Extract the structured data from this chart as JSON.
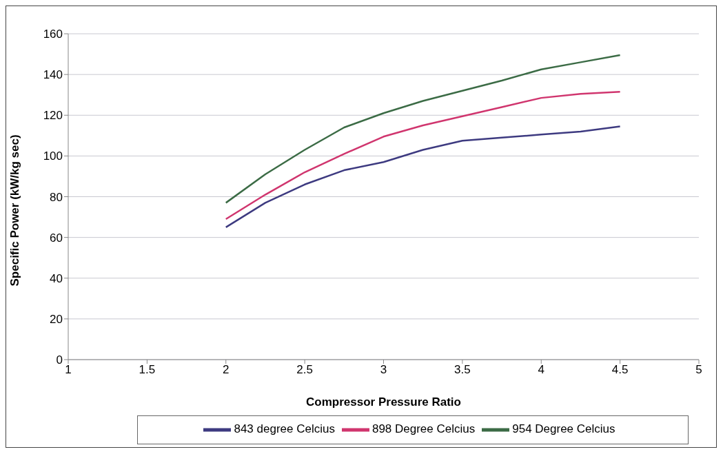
{
  "chart_data": {
    "type": "line",
    "xlabel": "Compressor Pressure Ratio",
    "ylabel": "Specific Power (kW/kg sec)",
    "x": [
      2,
      2.25,
      2.5,
      2.75,
      3,
      3.25,
      3.5,
      3.75,
      4,
      4.25,
      4.5
    ],
    "series": [
      {
        "name": "843 degree Celcius",
        "color": "#3d3a80",
        "values": [
          65,
          77,
          86,
          93,
          97,
          103,
          107.5,
          109,
          110.5,
          112,
          114.5
        ]
      },
      {
        "name": "898 Degree Celcius",
        "color": "#d0356e",
        "values": [
          69,
          81,
          92,
          101,
          109.5,
          115,
          119.5,
          124,
          128.5,
          130.5,
          131.5
        ]
      },
      {
        "name": "954 Degree Celcius",
        "color": "#3b6b45",
        "values": [
          77,
          91,
          103,
          114,
          121,
          127,
          132,
          137,
          142.5,
          146,
          149.5
        ]
      }
    ],
    "xlim": [
      1,
      5
    ],
    "xticks": [
      1,
      1.5,
      2,
      2.5,
      3,
      3.5,
      4,
      4.5,
      5
    ],
    "ylim": [
      0,
      160
    ],
    "yticks": [
      0,
      20,
      40,
      60,
      80,
      100,
      120,
      140,
      160
    ],
    "grid": "y",
    "legend": "bottom",
    "marker": "none",
    "line_style": "solid"
  }
}
